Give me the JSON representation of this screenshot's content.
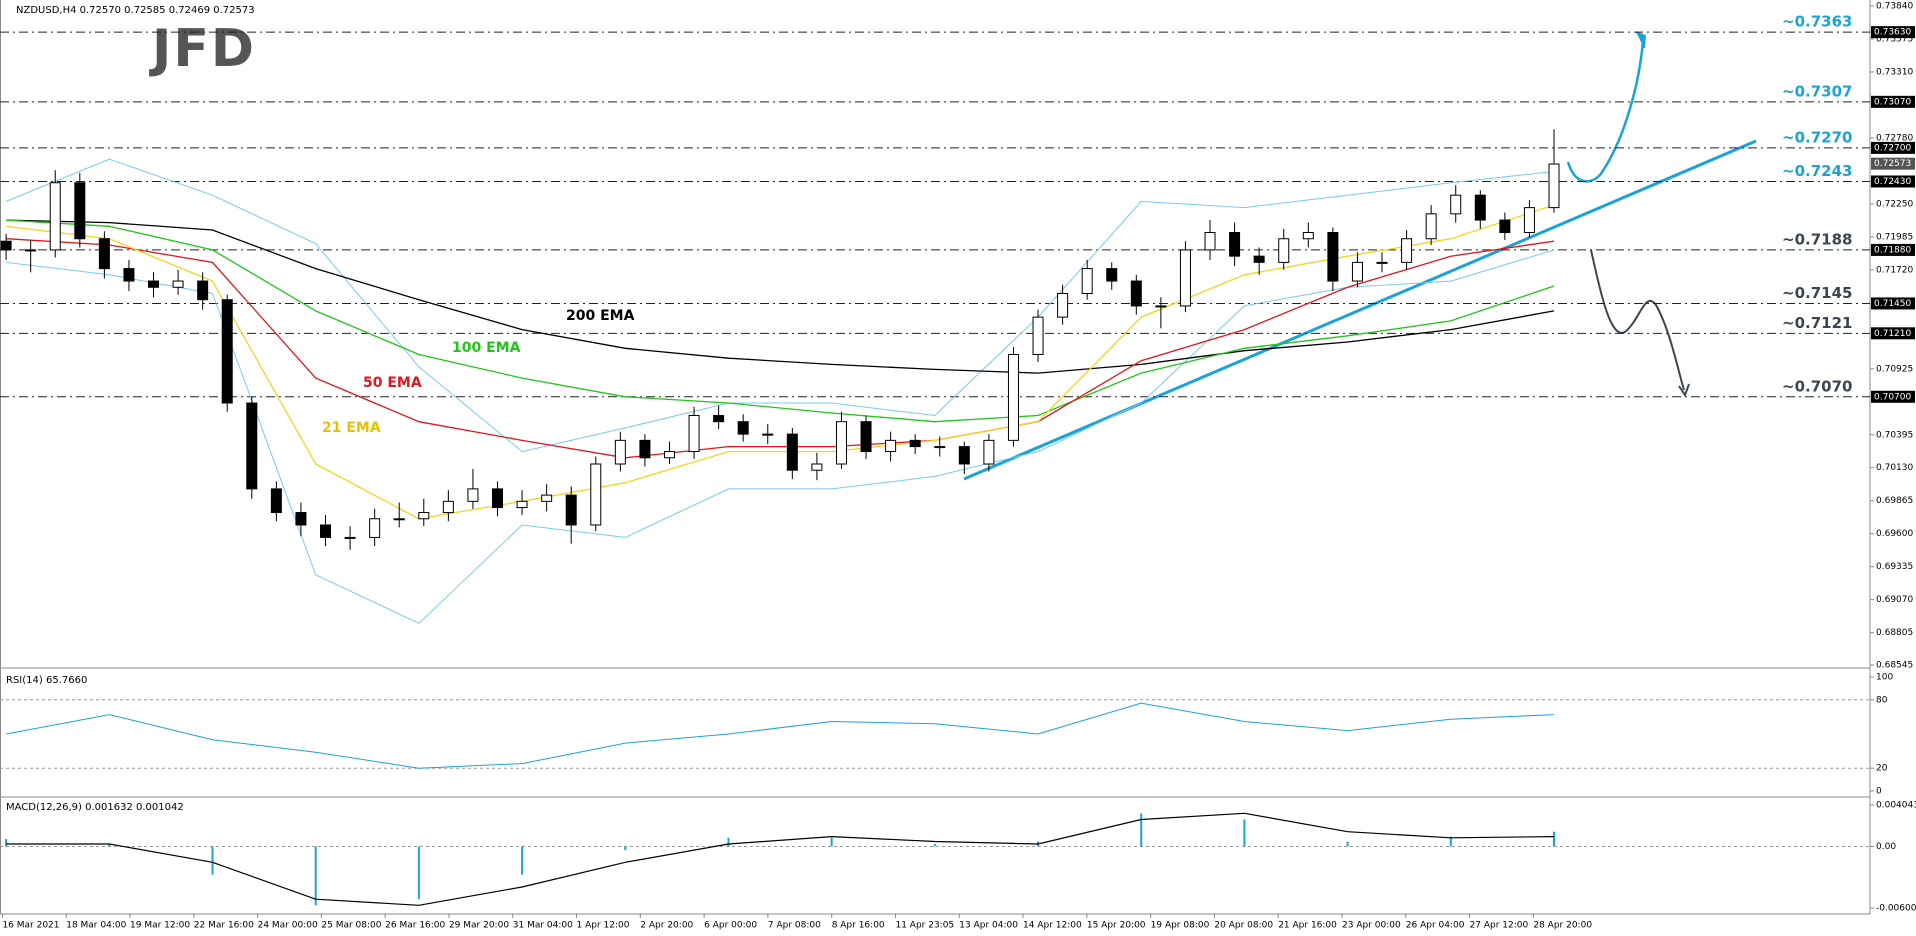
{
  "chart_data": {
    "type": "candlestick",
    "header": "NZDUSD,H4  0.72570 0.72585 0.72469 0.72573",
    "logo": "JFD",
    "ylim": [
      0.68545,
      0.7384
    ],
    "yticks": [
      {
        "value": 0.7384,
        "label": "0.73840"
      },
      {
        "value": 0.73575,
        "label": "0.73575"
      },
      {
        "value": 0.7331,
        "label": "0.73310"
      },
      {
        "value": 0.7278,
        "label": "0.72780"
      },
      {
        "value": 0.7225,
        "label": "0.72250"
      },
      {
        "value": 0.71985,
        "label": "0.71985"
      },
      {
        "value": 0.7172,
        "label": "0.71720"
      },
      {
        "value": 0.70925,
        "label": "0.70925"
      },
      {
        "value": 0.70395,
        "label": "0.70395"
      },
      {
        "value": 0.7013,
        "label": "0.70130"
      },
      {
        "value": 0.69865,
        "label": "0.69865"
      },
      {
        "value": 0.696,
        "label": "0.69600"
      },
      {
        "value": 0.69335,
        "label": "0.69335"
      },
      {
        "value": 0.6907,
        "label": "0.69070"
      },
      {
        "value": 0.68805,
        "label": "0.68805"
      },
      {
        "value": 0.68545,
        "label": "0.68545"
      }
    ],
    "up_color": "#ffffff",
    "down_color": "#000000",
    "open": [
      0.7195,
      0.7188,
      0.7188,
      0.7242,
      0.7197,
      0.7173,
      0.7163,
      0.7158,
      0.7163,
      0.7148,
      0.7065,
      0.6996,
      0.6977,
      0.6967,
      0.6957,
      0.6957,
      0.6972,
      0.6972,
      0.6977,
      0.6986,
      0.6996,
      0.6981,
      0.6986,
      0.6991,
      0.6967,
      0.7016,
      0.7035,
      0.7021,
      0.7026,
      0.7055,
      0.705,
      0.704,
      0.704,
      0.7011,
      0.7016,
      0.705,
      0.7026,
      0.7035,
      0.703,
      0.703,
      0.7016,
      0.7035,
      0.7104,
      0.7134,
      0.7153,
      0.7173,
      0.7163,
      0.7143,
      0.7143,
      0.7188,
      0.7202,
      0.7183,
      0.7178,
      0.7197,
      0.7202,
      0.7163,
      0.7178,
      0.7178,
      0.7197,
      0.7217,
      0.7232,
      0.7212,
      0.7202,
      0.7222
    ],
    "high": [
      0.7201,
      0.7196,
      0.7252,
      0.725,
      0.7203,
      0.718,
      0.717,
      0.7172,
      0.717,
      0.7152,
      0.707,
      0.7002,
      0.6985,
      0.6975,
      0.6966,
      0.698,
      0.6985,
      0.6988,
      0.6995,
      0.7012,
      0.7002,
      0.6995,
      0.7,
      0.6998,
      0.7022,
      0.7042,
      0.704,
      0.7034,
      0.7062,
      0.7063,
      0.7056,
      0.7048,
      0.7045,
      0.7025,
      0.7058,
      0.7055,
      0.7042,
      0.704,
      0.7038,
      0.7034,
      0.704,
      0.711,
      0.714,
      0.716,
      0.718,
      0.7178,
      0.7168,
      0.715,
      0.7195,
      0.7212,
      0.721,
      0.719,
      0.7205,
      0.721,
      0.7206,
      0.7186,
      0.7186,
      0.7204,
      0.7224,
      0.724,
      0.7236,
      0.7218,
      0.7228,
      0.7285
    ],
    "low": [
      0.718,
      0.717,
      0.7182,
      0.719,
      0.7165,
      0.7155,
      0.715,
      0.7152,
      0.714,
      0.7058,
      0.6988,
      0.697,
      0.6958,
      0.695,
      0.6947,
      0.695,
      0.6965,
      0.6966,
      0.697,
      0.698,
      0.6974,
      0.6975,
      0.6978,
      0.6952,
      0.6962,
      0.701,
      0.7014,
      0.7016,
      0.702,
      0.7044,
      0.7034,
      0.7032,
      0.7004,
      0.7003,
      0.7012,
      0.702,
      0.7018,
      0.7024,
      0.7022,
      0.7008,
      0.701,
      0.703,
      0.7098,
      0.7128,
      0.7148,
      0.7156,
      0.7136,
      0.7125,
      0.7138,
      0.718,
      0.7175,
      0.7168,
      0.7172,
      0.719,
      0.7155,
      0.7158,
      0.717,
      0.7172,
      0.7192,
      0.721,
      0.7205,
      0.7196,
      0.7198,
      0.7218
    ],
    "close": [
      0.7188,
      0.7188,
      0.7242,
      0.7197,
      0.7173,
      0.7163,
      0.7158,
      0.7163,
      0.7148,
      0.7065,
      0.6996,
      0.6977,
      0.6967,
      0.6957,
      0.6957,
      0.6972,
      0.6972,
      0.6977,
      0.6986,
      0.6996,
      0.6981,
      0.6986,
      0.6991,
      0.6967,
      0.7016,
      0.7035,
      0.7021,
      0.7026,
      0.7055,
      0.705,
      0.704,
      0.704,
      0.7011,
      0.7016,
      0.705,
      0.7026,
      0.7035,
      0.703,
      0.703,
      0.7016,
      0.7035,
      0.7104,
      0.7134,
      0.7153,
      0.7173,
      0.7163,
      0.7143,
      0.7143,
      0.7188,
      0.7202,
      0.7183,
      0.7178,
      0.7197,
      0.7202,
      0.7163,
      0.7178,
      0.7178,
      0.7197,
      0.7217,
      0.7232,
      0.7212,
      0.7202,
      0.7222,
      0.7257
    ],
    "bands": {
      "color": "#7cc8ee",
      "upper": [
        0.7227,
        0.7261,
        0.7232,
        0.7193,
        0.7094,
        0.7026,
        0.7045,
        0.7065,
        0.7065,
        0.7055,
        0.7134,
        0.7227,
        0.7222,
        0.7232,
        0.7242,
        0.7251
      ],
      "lower": [
        0.7178,
        0.7168,
        0.7153,
        0.6927,
        0.6888,
        0.6967,
        0.6957,
        0.6996,
        0.6996,
        0.7006,
        0.7026,
        0.7065,
        0.7143,
        0.7158,
        0.7163,
        0.7188
      ]
    },
    "overlays": [
      {
        "name": "200 EMA",
        "color": "#000000",
        "values": [
          0.7212,
          0.721,
          0.7204,
          0.7173,
          0.7148,
          0.7124,
          0.7109,
          0.7101,
          0.7096,
          0.7092,
          0.7089,
          0.7096,
          0.7107,
          0.7114,
          0.7124,
          0.7139
        ]
      },
      {
        "name": "100 EMA",
        "color": "#22c41a",
        "values": [
          0.7212,
          0.7207,
          0.7188,
          0.7139,
          0.7104,
          0.7085,
          0.707,
          0.7065,
          0.7057,
          0.705,
          0.7055,
          0.7089,
          0.7109,
          0.7119,
          0.7131,
          0.7159
        ]
      },
      {
        "name": "50 EMA",
        "color": "#e0161b",
        "values": [
          0.7197,
          0.7192,
          0.7178,
          0.7085,
          0.705,
          0.7035,
          0.7021,
          0.703,
          0.703,
          0.7035,
          0.705,
          0.7099,
          0.7124,
          0.7158,
          0.7183,
          0.7195
        ]
      },
      {
        "name": "21 EMA",
        "color": "#f2d522",
        "values": [
          0.7207,
          0.7197,
          0.7163,
          0.7016,
          0.6972,
          0.6986,
          0.7001,
          0.7026,
          0.7026,
          0.7035,
          0.705,
          0.7134,
          0.7168,
          0.7183,
          0.7197,
          0.7224
        ]
      }
    ],
    "levels": [
      {
        "value": 0.7363,
        "label": "0.73630",
        "annotation": "~0.7363",
        "color": "#1ca3d6"
      },
      {
        "value": 0.7307,
        "label": "0.73070",
        "annotation": "~0.7307",
        "color": "#1ca3d6"
      },
      {
        "value": 0.727,
        "label": "0.72700",
        "annotation": "~0.7270",
        "color": "#1ca3d6"
      },
      {
        "value": 0.7243,
        "label": "0.72430",
        "annotation": "~0.7243",
        "color": "#1ca3d6"
      },
      {
        "value": 0.7188,
        "label": "0.71880",
        "annotation": "~0.7188",
        "color": "#3d4650"
      },
      {
        "value": 0.7145,
        "label": "0.71450",
        "annotation": "~0.7145",
        "color": "#3d4650"
      },
      {
        "value": 0.7121,
        "label": "0.71210",
        "annotation": "~0.7121",
        "color": "#3d4650"
      },
      {
        "value": 0.707,
        "label": "0.70700",
        "annotation": "~0.7070",
        "color": "#3d4650"
      }
    ],
    "current_price": {
      "value": 0.72573,
      "label": "0.72573"
    },
    "x_labels": [
      "16 Mar 2021",
      "18 Mar 04:00",
      "19 Mar 12:00",
      "22 Mar 16:00",
      "24 Mar 00:00",
      "25 Mar 08:00",
      "26 Mar 16:00",
      "29 Mar 20:00",
      "31 Mar 04:00",
      "1 Apr 12:00",
      "2 Apr 20:00",
      "6 Apr 00:00",
      "7 Apr 08:00",
      "8 Apr 16:00",
      "11 Apr 23:05",
      "13 Apr 04:00",
      "14 Apr 12:00",
      "15 Apr 20:00",
      "19 Apr 08:00",
      "20 Apr 08:00",
      "21 Apr 16:00",
      "23 Apr 00:00",
      "26 Apr 04:00",
      "27 Apr 12:00",
      "28 Apr 20:00"
    ],
    "rsi": {
      "type": "line",
      "title": "RSI(14) 65.7660",
      "ylim": [
        0,
        100
      ],
      "yticks": [
        100,
        80,
        20,
        0
      ],
      "color": "#1ca3d6",
      "values": [
        50,
        67,
        45,
        34,
        20,
        24,
        42,
        50,
        61,
        59,
        50,
        77,
        61,
        53,
        63,
        67
      ]
    },
    "macd": {
      "type": "bar",
      "title": "MACD(12,26,9) 0.001632 0.001042",
      "ylim": [
        -0.006003,
        0.004043
      ],
      "yticks": [
        0.004043,
        {
          "value": 0,
          "label": "0.00"
        },
        -0.006003
      ],
      "color": "#1ca3d6",
      "values": [
        0.00072,
        0.00024,
        -0.00275,
        -0.00574,
        -0.00514,
        -0.00275,
        -0.00036,
        0.00084,
        0.00084,
        0.00024,
        0.00048,
        0.00323,
        0.00263,
        0.00048,
        0.00096,
        0.00144
      ],
      "signal": {
        "color": "#000000",
        "values": [
          0.00024,
          0.00024,
          -0.00155,
          -0.00514,
          -0.00574,
          -0.00395,
          -0.00155,
          0.00024,
          0.00096,
          0.00048,
          0.00024,
          0.00263,
          0.00323,
          0.00144,
          0.00084,
          0.00096
        ]
      }
    }
  }
}
